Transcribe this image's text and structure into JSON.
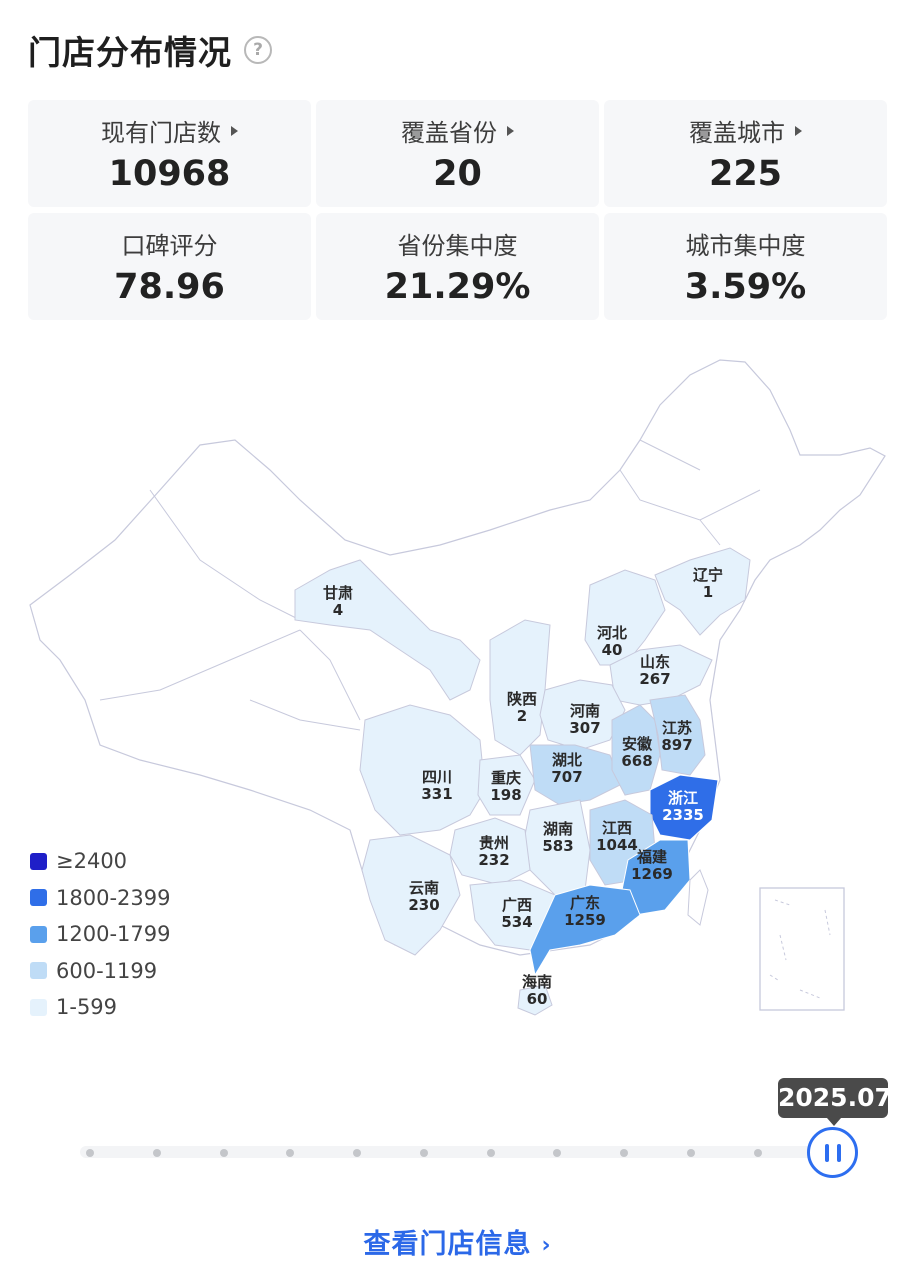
{
  "header": {
    "title": "门店分布情况",
    "help_icon": "?"
  },
  "stats": [
    {
      "label": "现有门店数",
      "value": "10968",
      "has_arrow": true
    },
    {
      "label": "覆盖省份",
      "value": "20",
      "has_arrow": true
    },
    {
      "label": "覆盖城市",
      "value": "225",
      "has_arrow": true
    },
    {
      "label": "口碑评分",
      "value": "78.96",
      "has_arrow": false
    },
    {
      "label": "省份集中度",
      "value": "21.29%",
      "has_arrow": false
    },
    {
      "label": "城市集中度",
      "value": "3.59%",
      "has_arrow": false
    }
  ],
  "map": {
    "provinces": [
      {
        "name": "辽宁",
        "value": "1"
      },
      {
        "name": "甘肃",
        "value": "4"
      },
      {
        "name": "河北",
        "value": "40"
      },
      {
        "name": "山东",
        "value": "267"
      },
      {
        "name": "陕西",
        "value": "2"
      },
      {
        "name": "河南",
        "value": "307"
      },
      {
        "name": "江苏",
        "value": "897"
      },
      {
        "name": "安徽",
        "value": "668"
      },
      {
        "name": "湖北",
        "value": "707"
      },
      {
        "name": "四川",
        "value": "331"
      },
      {
        "name": "重庆",
        "value": "198"
      },
      {
        "name": "浙江",
        "value": "2335"
      },
      {
        "name": "湖南",
        "value": "583"
      },
      {
        "name": "江西",
        "value": "1044"
      },
      {
        "name": "贵州",
        "value": "232"
      },
      {
        "name": "福建",
        "value": "1269"
      },
      {
        "name": "云南",
        "value": "230"
      },
      {
        "name": "广西",
        "value": "534"
      },
      {
        "name": "广东",
        "value": "1259"
      },
      {
        "name": "海南",
        "value": "60"
      }
    ]
  },
  "legend": [
    {
      "label": "≥2400",
      "color": "#1f1fc8"
    },
    {
      "label": "1800-2399",
      "color": "#2f6ee8"
    },
    {
      "label": "1200-1799",
      "color": "#5aa0ec"
    },
    {
      "label": "600-1199",
      "color": "#bfdcf6"
    },
    {
      "label": "1-599",
      "color": "#e5f2fc"
    }
  ],
  "timeline": {
    "current": "2025.07"
  },
  "footer": {
    "link_text": "查看门店信息"
  }
}
